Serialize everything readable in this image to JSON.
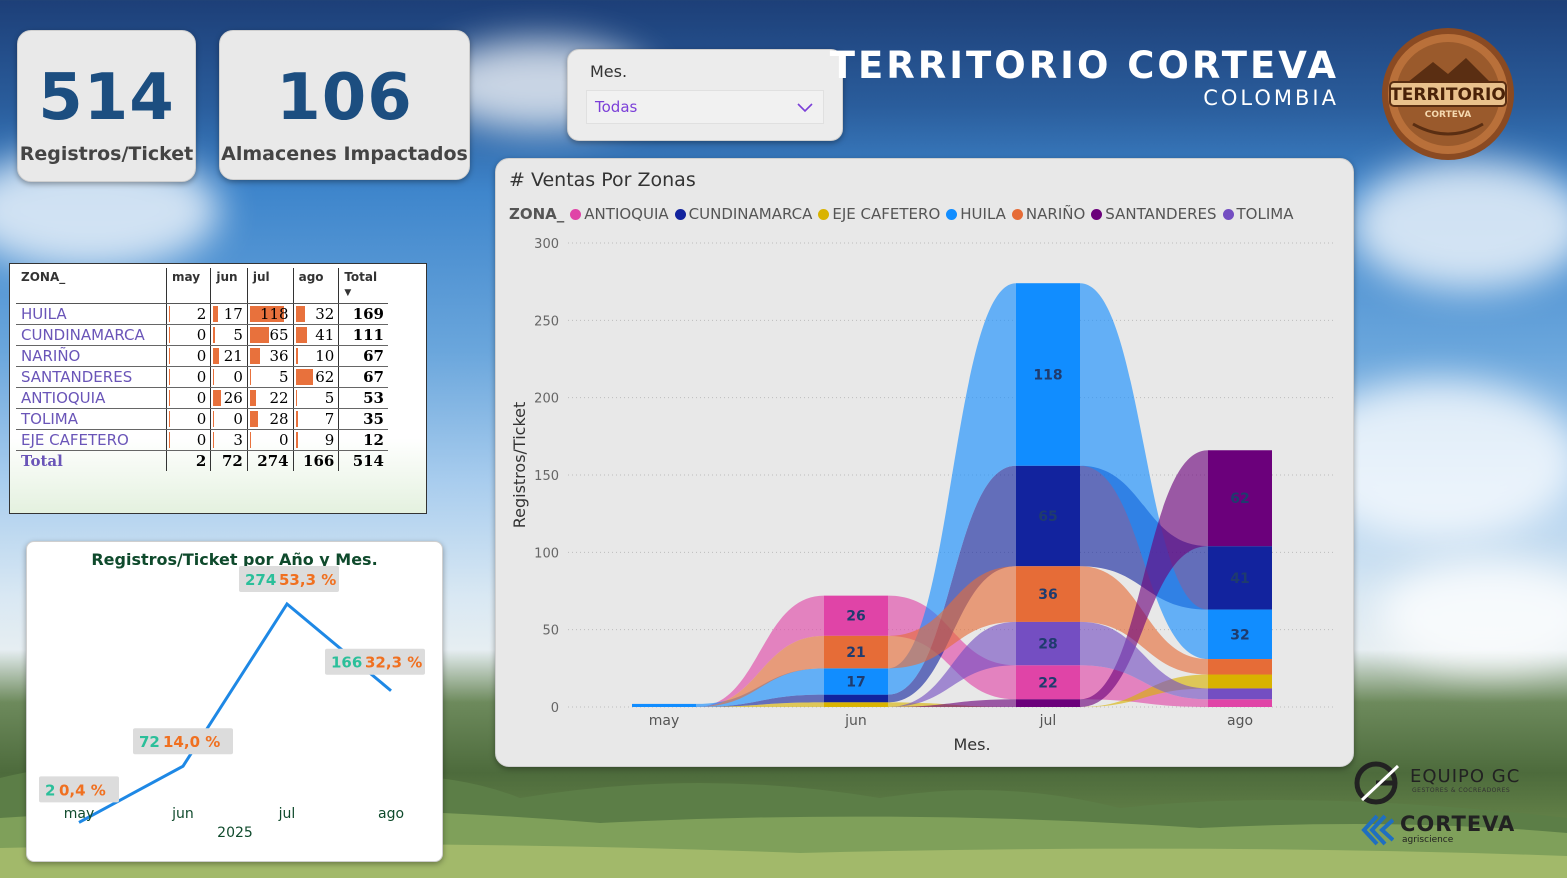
{
  "kpis": [
    {
      "value": "514",
      "label": "Registros/Ticket"
    },
    {
      "value": "106",
      "label": "Almacenes Impactados"
    }
  ],
  "slicer": {
    "title": "Mes.",
    "value": "Todas"
  },
  "header": {
    "title": "TERRITORIO CORTEVA",
    "subtitle": "COLOMBIA"
  },
  "badge": {
    "line1": "TERRITORIO",
    "line2": "CORTEVA"
  },
  "matrix": {
    "columns": [
      "ZONA_",
      "may",
      "jun",
      "jul",
      "ago",
      "Total"
    ],
    "rows": [
      {
        "zona": "HUILA",
        "may": "2",
        "jun": "17",
        "jul": "118",
        "ago": "32",
        "total": "169"
      },
      {
        "zona": "CUNDINAMARCA",
        "may": "0",
        "jun": "5",
        "jul": "65",
        "ago": "41",
        "total": "111"
      },
      {
        "zona": "NARIÑO",
        "may": "0",
        "jun": "21",
        "jul": "36",
        "ago": "10",
        "total": "67"
      },
      {
        "zona": "SANTANDERES",
        "may": "0",
        "jun": "0",
        "jul": "5",
        "ago": "62",
        "total": "67"
      },
      {
        "zona": "ANTIOQUIA",
        "may": "0",
        "jun": "26",
        "jul": "22",
        "ago": "5",
        "total": "53"
      },
      {
        "zona": "TOLIMA",
        "may": "0",
        "jun": "0",
        "jul": "28",
        "ago": "7",
        "total": "35"
      },
      {
        "zona": "EJE CAFETERO",
        "may": "0",
        "jun": "3",
        "jul": "0",
        "ago": "9",
        "total": "12"
      }
    ],
    "total": {
      "zona": "Total",
      "may": "2",
      "jun": "72",
      "jul": "274",
      "ago": "166",
      "total": "514"
    },
    "bar_color": "#e8713c"
  },
  "ribbon": {
    "title": "# Ventas Por Zonas",
    "legend_title": "ZONA_",
    "xlabel": "Mes.",
    "ylabel": "Registros/Ticket",
    "yticks": [
      "300",
      "250",
      "200",
      "150",
      "100",
      "50",
      "0"
    ]
  },
  "line": {
    "title": "Registros/Ticket por Año y Mes.",
    "year": "2025"
  },
  "logos": {
    "equipo": "EQUIPO GC",
    "equipo_sub": "GESTORES & COCREADORES",
    "corteva": "CORTEVA",
    "corteva_sub": "agriscience"
  },
  "chart_data": [
    {
      "type": "area",
      "title": "# Ventas Por Zonas",
      "xlabel": "Mes.",
      "ylabel": "Registros/Ticket",
      "ylim": [
        0,
        300
      ],
      "categories": [
        "may",
        "jun",
        "jul",
        "ago"
      ],
      "legend": "top-left",
      "series": [
        {
          "name": "ANTIOQUIA",
          "color": "#e044a7",
          "values": [
            0,
            26,
            22,
            5
          ]
        },
        {
          "name": "CUNDINAMARCA",
          "color": "#12239e",
          "values": [
            0,
            5,
            65,
            41
          ]
        },
        {
          "name": "EJE CAFETERO",
          "color": "#d9b300",
          "values": [
            0,
            3,
            0,
            9
          ]
        },
        {
          "name": "HUILA",
          "color": "#118dff",
          "values": [
            2,
            17,
            118,
            32
          ]
        },
        {
          "name": "NARIÑO",
          "color": "#e66c37",
          "values": [
            0,
            21,
            36,
            10
          ]
        },
        {
          "name": "SANTANDERES",
          "color": "#6b007b",
          "values": [
            0,
            0,
            5,
            62
          ]
        },
        {
          "name": "TOLIMA",
          "color": "#744ec2",
          "values": [
            0,
            0,
            28,
            7
          ]
        }
      ],
      "data_labels": [
        {
          "x": "jun",
          "series": "ANTIOQUIA",
          "text": "26"
        },
        {
          "x": "jun",
          "series": "NARIÑO",
          "text": "21"
        },
        {
          "x": "jun",
          "series": "HUILA",
          "text": "17"
        },
        {
          "x": "jul",
          "series": "HUILA",
          "text": "118"
        },
        {
          "x": "jul",
          "series": "CUNDINAMARCA",
          "text": "65"
        },
        {
          "x": "jul",
          "series": "NARIÑO",
          "text": "36"
        },
        {
          "x": "jul",
          "series": "TOLIMA",
          "text": "28"
        },
        {
          "x": "jul",
          "series": "ANTIOQUIA",
          "text": "22"
        },
        {
          "x": "ago",
          "series": "SANTANDERES",
          "text": "62"
        },
        {
          "x": "ago",
          "series": "CUNDINAMARCA",
          "text": "41"
        },
        {
          "x": "ago",
          "series": "HUILA",
          "text": "32"
        }
      ]
    },
    {
      "type": "line",
      "title": "Registros/Ticket por Año y Mes.",
      "categories": [
        "may",
        "jun",
        "jul",
        "ago"
      ],
      "xlabel": "2025",
      "color": "#1e88e5",
      "values": [
        2,
        72,
        274,
        166
      ],
      "labels": [
        {
          "value": "2",
          "pct": "0,4 %"
        },
        {
          "value": "72",
          "pct": "14,0 %"
        },
        {
          "value": "274",
          "pct": "53,3 %"
        },
        {
          "value": "166",
          "pct": "32,3 %"
        }
      ]
    }
  ]
}
